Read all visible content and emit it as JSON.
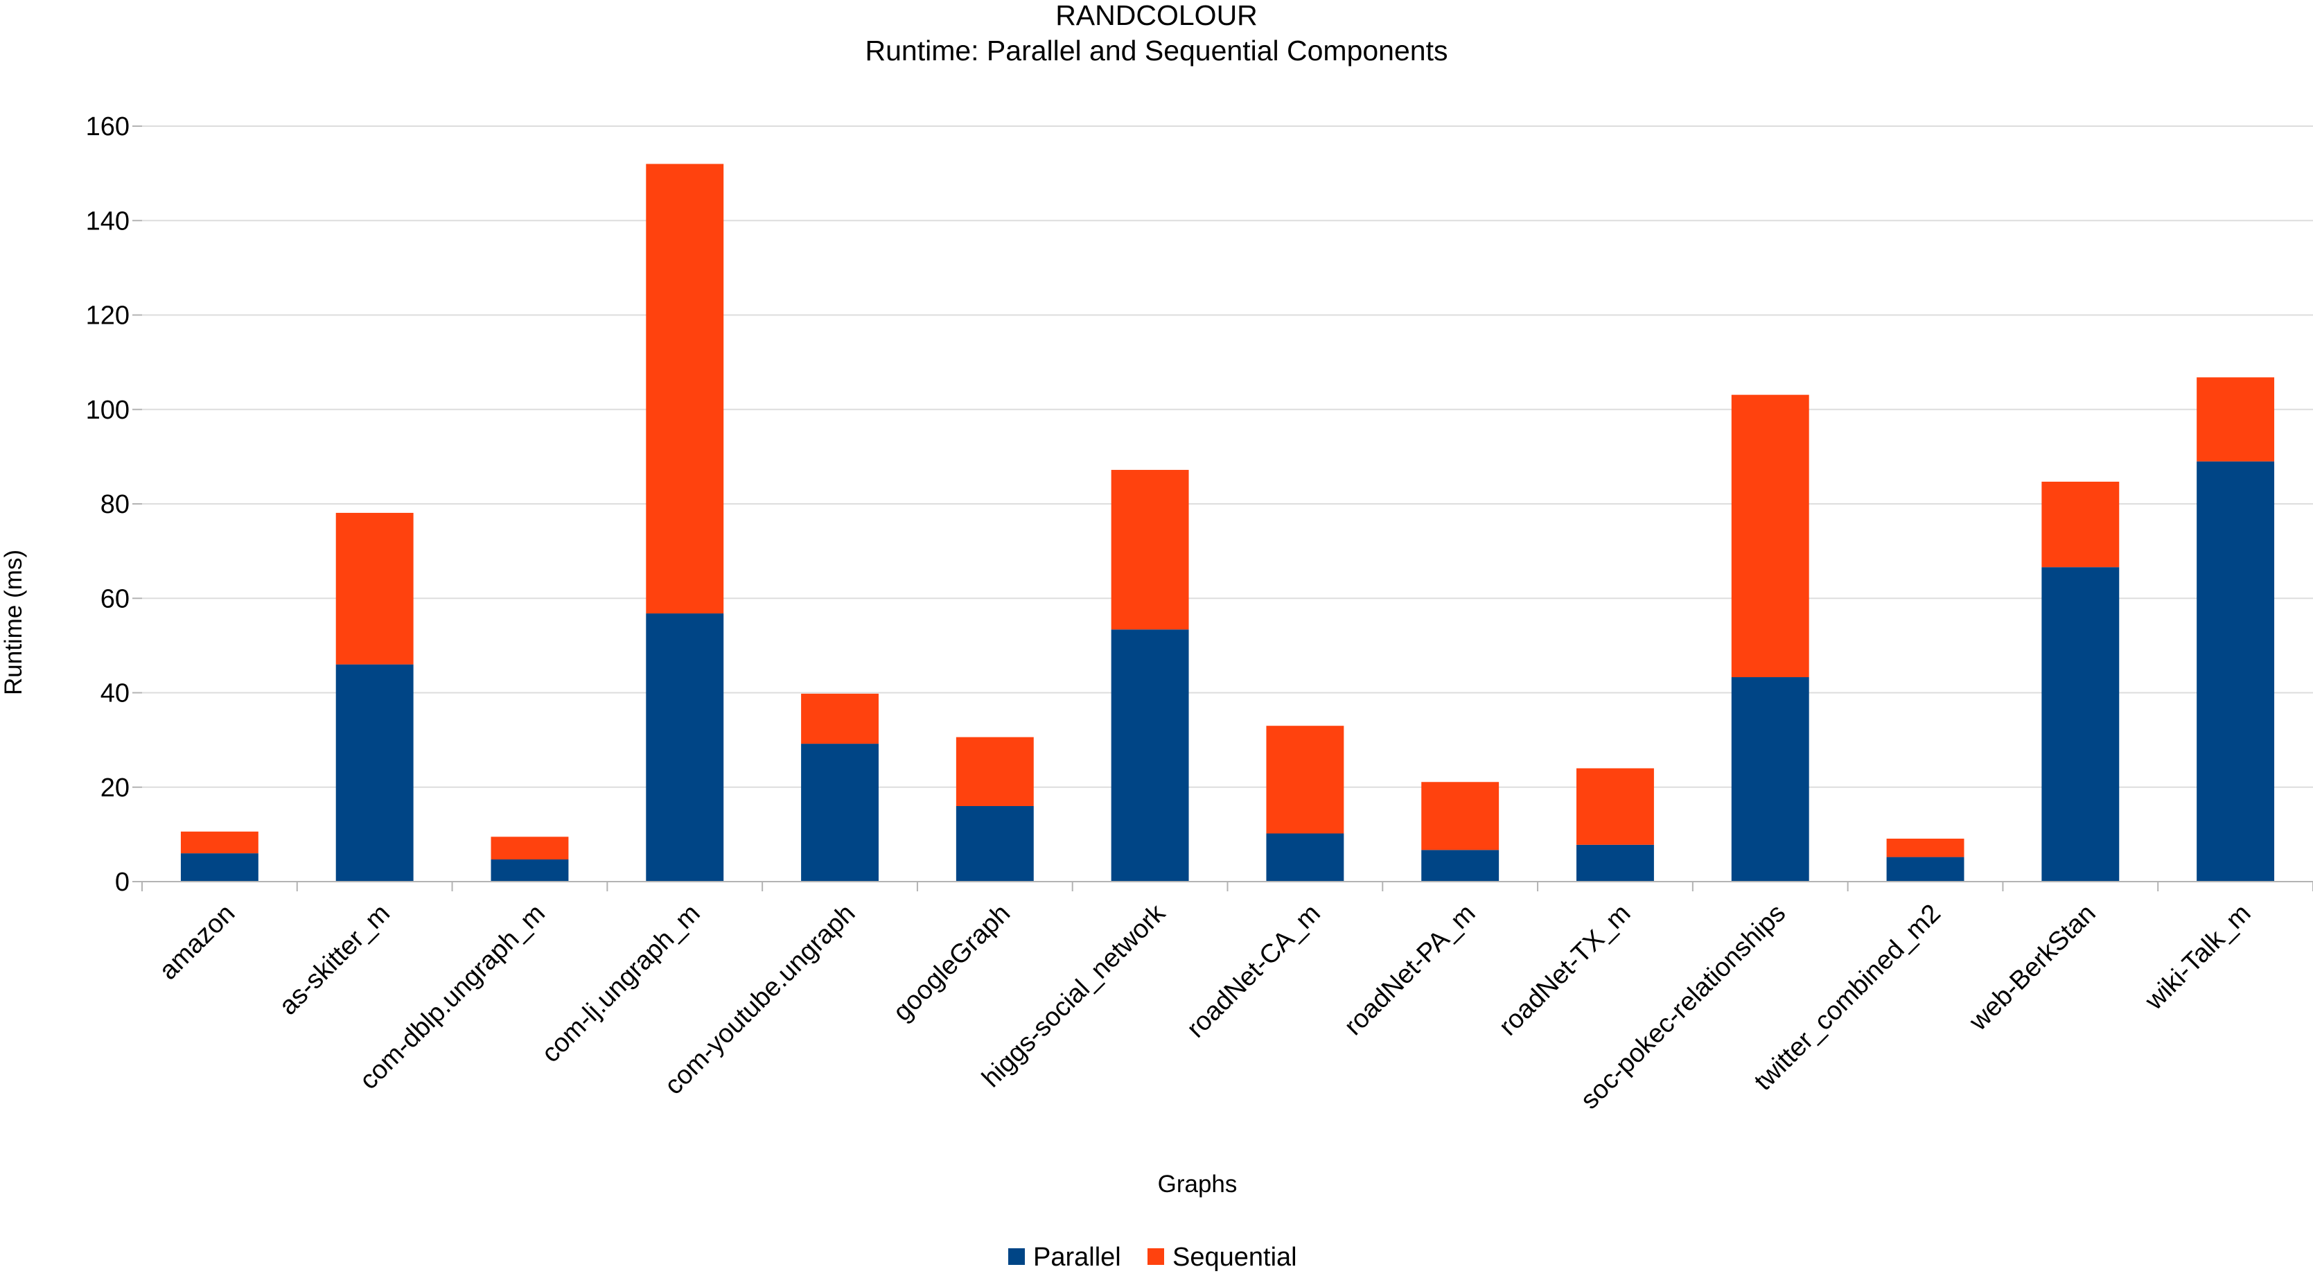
{
  "chart_data": {
    "type": "bar",
    "stacked": true,
    "title": "RANDCOLOUR",
    "subtitle": "Runtime: Parallel and Sequential Components",
    "xlabel": "Graphs",
    "ylabel": "Runtime (ms)",
    "ylim": [
      0,
      160
    ],
    "yticks": [
      0,
      20,
      40,
      60,
      80,
      100,
      120,
      140,
      160
    ],
    "grid": true,
    "legend_position": "bottom",
    "categories": [
      "amazon",
      "as-skitter_m",
      "com-dblp.ungraph_m",
      "com-lj.ungraph_m",
      "com-youtube.ungraph",
      "googleGraph",
      "higgs-social_network",
      "roadNet-CA_m",
      "roadNet-PA_m",
      "roadNet-TX_m",
      "soc-pokec-relationships",
      "twitter_combined_m2",
      "web-BerkStan",
      "wiki-Talk_m"
    ],
    "series": [
      {
        "name": "Parallel",
        "color": "#004586",
        "values": [
          6,
          46,
          4.7,
          56.8,
          29.2,
          16,
          53.4,
          10.2,
          6.7,
          7.8,
          43.3,
          5.2,
          66.6,
          89
        ]
      },
      {
        "name": "Sequential",
        "color": "#ff420e",
        "values": [
          4.6,
          32.1,
          4.8,
          95.2,
          10.6,
          14.6,
          33.8,
          22.8,
          14.4,
          16.2,
          59.8,
          3.9,
          18.1,
          17.8
        ]
      }
    ]
  }
}
